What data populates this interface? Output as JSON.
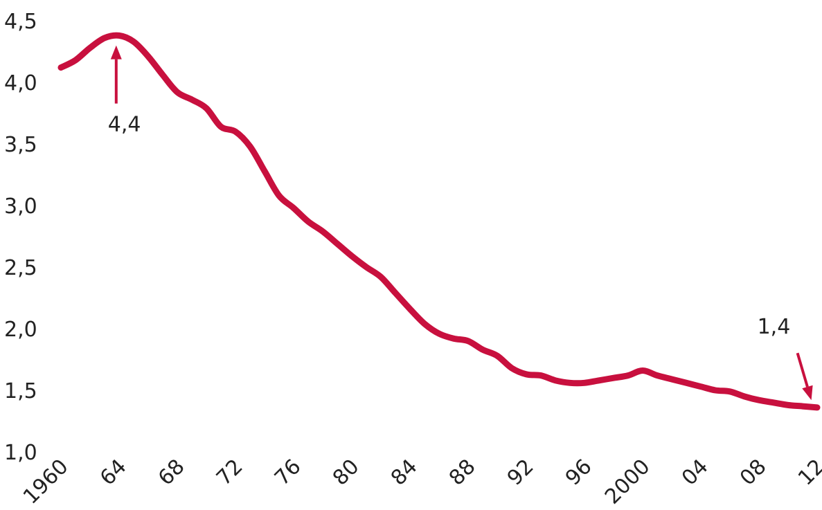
{
  "colors": {
    "line": "#c8103e",
    "arrow": "#c8103e",
    "text": "#222222",
    "background": "#ffffff"
  },
  "chart_data": {
    "type": "line",
    "title": "",
    "xlabel": "",
    "ylabel": "",
    "xlim": [
      1960,
      2012
    ],
    "ylim": [
      1.0,
      4.5
    ],
    "grid": false,
    "legend": "none",
    "y_ticks": [
      {
        "value": 4.5,
        "label": "4,5"
      },
      {
        "value": 4.0,
        "label": "4,0"
      },
      {
        "value": 3.5,
        "label": "3,5"
      },
      {
        "value": 3.0,
        "label": "3,0"
      },
      {
        "value": 2.5,
        "label": "2,5"
      },
      {
        "value": 2.0,
        "label": "2,0"
      },
      {
        "value": 1.5,
        "label": "1,5"
      },
      {
        "value": 1.0,
        "label": "1,0"
      }
    ],
    "x_ticks": [
      {
        "value": 1960,
        "label": "1960"
      },
      {
        "value": 1964,
        "label": "64"
      },
      {
        "value": 1968,
        "label": "68"
      },
      {
        "value": 1972,
        "label": "72"
      },
      {
        "value": 1976,
        "label": "76"
      },
      {
        "value": 1980,
        "label": "80"
      },
      {
        "value": 1984,
        "label": "84"
      },
      {
        "value": 1988,
        "label": "88"
      },
      {
        "value": 1992,
        "label": "92"
      },
      {
        "value": 1996,
        "label": "96"
      },
      {
        "value": 2000,
        "label": "2000"
      },
      {
        "value": 2004,
        "label": "04"
      },
      {
        "value": 2008,
        "label": "08"
      },
      {
        "value": 2012,
        "label": "12"
      }
    ],
    "series": [
      {
        "x": [
          1960,
          1961,
          1962,
          1963,
          1964,
          1965,
          1966,
          1967,
          1968,
          1969,
          1970,
          1971,
          1972,
          1973,
          1974,
          1975,
          1976,
          1977,
          1978,
          1979,
          1980,
          1981,
          1982,
          1983,
          1984,
          1985,
          1986,
          1987,
          1988,
          1989,
          1990,
          1991,
          1992,
          1993,
          1994,
          1995,
          1996,
          1997,
          1998,
          1999,
          2000,
          2001,
          2002,
          2003,
          2004,
          2005,
          2006,
          2007,
          2008,
          2009,
          2010,
          2011,
          2012
        ],
        "values": [
          4.12,
          4.18,
          4.28,
          4.36,
          4.38,
          4.33,
          4.21,
          4.06,
          3.92,
          3.86,
          3.79,
          3.64,
          3.6,
          3.48,
          3.28,
          3.08,
          2.98,
          2.87,
          2.79,
          2.69,
          2.59,
          2.5,
          2.42,
          2.29,
          2.16,
          2.04,
          1.96,
          1.92,
          1.9,
          1.83,
          1.78,
          1.68,
          1.63,
          1.62,
          1.58,
          1.56,
          1.56,
          1.58,
          1.6,
          1.62,
          1.66,
          1.62,
          1.59,
          1.56,
          1.53,
          1.5,
          1.49,
          1.45,
          1.42,
          1.4,
          1.38,
          1.37,
          1.36
        ]
      }
    ],
    "annotations": [
      {
        "text": "4,4",
        "target": {
          "x": 1963.8,
          "y": 4.3
        }
      },
      {
        "text": "1,4",
        "target": {
          "x": 2011.6,
          "y": 1.42
        }
      }
    ]
  }
}
